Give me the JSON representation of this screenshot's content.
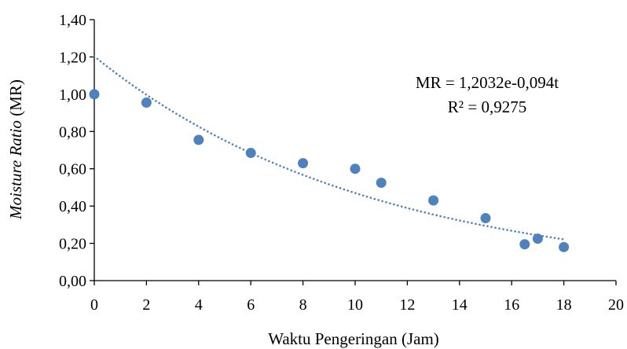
{
  "chart_data": {
    "type": "scatter",
    "xlabel": "Waktu Pengeringan (Jam)",
    "ylabel_italic": "Moisture Ratio",
    "ylabel_rest": " (MR)",
    "xlim": [
      0,
      20
    ],
    "ylim": [
      0,
      1.4
    ],
    "x_ticks": [
      {
        "value": 0,
        "label": "0"
      },
      {
        "value": 2,
        "label": "2"
      },
      {
        "value": 4,
        "label": "4"
      },
      {
        "value": 6,
        "label": "6"
      },
      {
        "value": 8,
        "label": "8"
      },
      {
        "value": 10,
        "label": "10"
      },
      {
        "value": 12,
        "label": "12"
      },
      {
        "value": 14,
        "label": "14"
      },
      {
        "value": 16,
        "label": "16"
      },
      {
        "value": 18,
        "label": "18"
      },
      {
        "value": 20,
        "label": "20"
      }
    ],
    "y_ticks": [
      {
        "value": 0,
        "label": "0,00"
      },
      {
        "value": 0.2,
        "label": "0,20"
      },
      {
        "value": 0.4,
        "label": "0,40"
      },
      {
        "value": 0.6,
        "label": "0,60"
      },
      {
        "value": 0.8,
        "label": "0,80"
      },
      {
        "value": 1.0,
        "label": "1,00"
      },
      {
        "value": 1.2,
        "label": "1,20"
      },
      {
        "value": 1.4,
        "label": "1,40"
      }
    ],
    "grid": false,
    "legend": "none",
    "series": [
      {
        "marker_color": "#4F81BD",
        "points": [
          {
            "x": 0,
            "y": 1.0
          },
          {
            "x": 2,
            "y": 0.955
          },
          {
            "x": 4,
            "y": 0.755
          },
          {
            "x": 6,
            "y": 0.685
          },
          {
            "x": 8,
            "y": 0.63
          },
          {
            "x": 10,
            "y": 0.6
          },
          {
            "x": 11,
            "y": 0.525
          },
          {
            "x": 13,
            "y": 0.43
          },
          {
            "x": 15,
            "y": 0.335
          },
          {
            "x": 16.5,
            "y": 0.195
          },
          {
            "x": 17,
            "y": 0.225
          },
          {
            "x": 18,
            "y": 0.18
          }
        ]
      }
    ],
    "trendline": {
      "kind": "exponential",
      "a": 1.2032,
      "b": -0.094,
      "x_range": [
        0,
        18
      ],
      "color": "#4F81BD",
      "style": "dotted",
      "equation_text": "MR = 1,2032e-0,094t",
      "r2_text": "R² = 0,9275"
    },
    "colors": {
      "axis": "#000000",
      "marker": "#4F81BD"
    }
  }
}
